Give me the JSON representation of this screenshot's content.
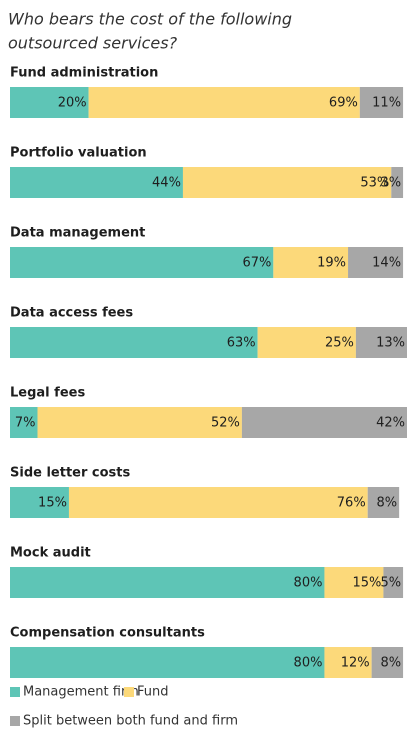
{
  "chart_data": {
    "type": "stacked-bar-horizontal",
    "title": [
      "Who bears the cost of the following",
      "outsourced services?"
    ],
    "categories": [
      "Fund administration",
      "Portfolio valuation",
      "Data management",
      "Data access fees",
      "Legal fees",
      "Side letter costs",
      "Mock audit",
      "Compensation consultants"
    ],
    "series": [
      {
        "name": "Management firm",
        "color": "#5ec5b6",
        "values": [
          20,
          44,
          67,
          63,
          7,
          15,
          80,
          80
        ],
        "value_labels": [
          "20%",
          "44%",
          "67%",
          "63%",
          "7%",
          "15%",
          "80%",
          "80%"
        ]
      },
      {
        "name": "Fund",
        "color": "#fcd97a",
        "values": [
          69,
          53,
          19,
          25,
          52,
          76,
          15,
          12
        ],
        "value_labels": [
          "69%",
          "53%",
          "19%",
          "25%",
          "52%",
          "76%",
          "15%",
          "12%"
        ]
      },
      {
        "name": "Split between both fund and firm",
        "color": "#a7a7a7",
        "values": [
          11,
          3,
          14,
          13,
          42,
          8,
          5,
          8
        ],
        "value_labels": [
          "11%",
          "3%",
          "14%",
          "13%",
          "42%",
          "8%",
          "5%",
          "8%"
        ]
      }
    ]
  }
}
